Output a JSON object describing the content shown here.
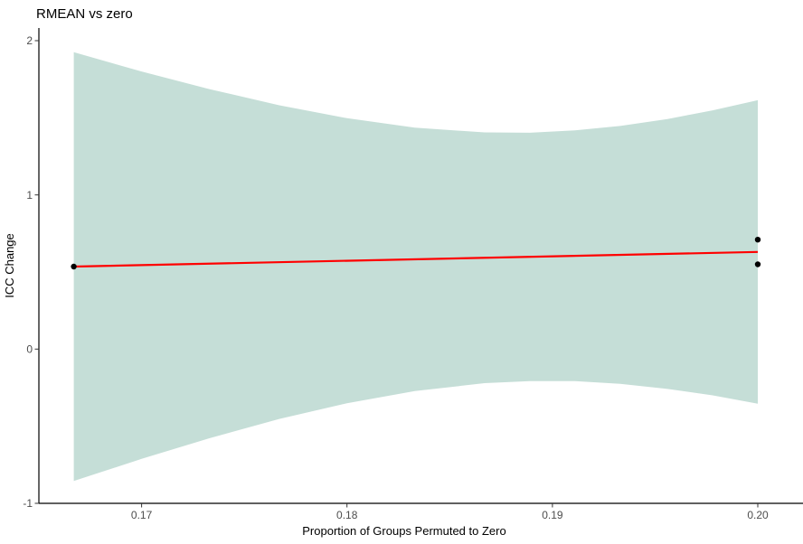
{
  "title": "RMEAN vs zero",
  "chart_data": {
    "type": "scatter",
    "title": "RMEAN vs zero",
    "xlabel": "Proportion of Groups Permuted to Zero",
    "ylabel": "ICC Change",
    "x_tick_values": [
      0.17,
      0.18,
      0.19,
      0.2
    ],
    "x_tick_labels": [
      "0.17",
      "0.18",
      "0.19",
      "0.20"
    ],
    "y_tick_values": [
      2,
      1,
      0,
      -1
    ],
    "y_tick_labels": [
      "2",
      "1",
      "0",
      "-1"
    ],
    "xlim": [
      0.165,
      0.2022
    ],
    "ylim": [
      -1.0,
      2.082
    ],
    "grid": false,
    "legend": false,
    "theme": "classic-white, axis lines only",
    "points": [
      {
        "x": 0.1667,
        "y": 0.535
      },
      {
        "x": 0.2,
        "y": 0.71
      },
      {
        "x": 0.2,
        "y": 0.55
      }
    ],
    "smooth_line": {
      "method": "lm",
      "x": [
        0.1667,
        0.2
      ],
      "y": [
        0.535,
        0.63
      ]
    },
    "confidence_band": {
      "x": [
        0.1667,
        0.17,
        0.1733,
        0.1767,
        0.18,
        0.1833,
        0.1867,
        0.1889,
        0.1911,
        0.1933,
        0.1956,
        0.1978,
        0.2
      ],
      "upper": [
        1.925,
        1.8,
        1.686,
        1.581,
        1.497,
        1.436,
        1.405,
        1.403,
        1.418,
        1.447,
        1.492,
        1.548,
        1.614
      ],
      "lower": [
        -0.855,
        -0.712,
        -0.578,
        -0.453,
        -0.351,
        -0.272,
        -0.221,
        -0.207,
        -0.208,
        -0.225,
        -0.258,
        -0.3,
        -0.354
      ]
    },
    "colors": {
      "band_fill": "#c5ded7",
      "smooth_line": "#ff0000",
      "point": "#000000",
      "axis_line": "#000000",
      "tick_label": "#4d4d4d",
      "background": "#ffffff"
    }
  }
}
